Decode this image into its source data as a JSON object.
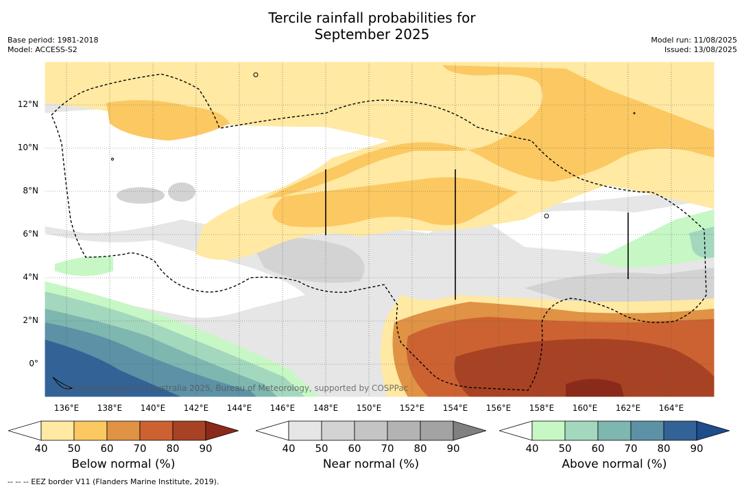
{
  "title_line1": "Tercile rainfall probabilities for",
  "title_line2": "September 2025",
  "meta_left": {
    "base_period": "Base period: 1981-2018",
    "model": "Model: ACCESS-S2"
  },
  "meta_right": {
    "model_run": "Model run: 11/08/2025",
    "issued": "Issued: 13/08/2025"
  },
  "map": {
    "lon_labels": [
      "136°E",
      "138°E",
      "140°E",
      "142°E",
      "144°E",
      "146°E",
      "148°E",
      "150°E",
      "152°E",
      "154°E",
      "156°E",
      "158°E",
      "160°E",
      "162°E",
      "164°E"
    ],
    "lat_labels": [
      "12°N",
      "10°N",
      "8°N",
      "6°N",
      "4°N",
      "2°N",
      "0°"
    ],
    "copyright": "© Commonwealth of Australia 2025, Bureau of Meteorology, supported by COSPPac"
  },
  "colorbars": [
    {
      "title": "Below normal (%)",
      "ticks": [
        "40",
        "50",
        "60",
        "70",
        "80",
        "90"
      ],
      "colors": [
        "#ffffff",
        "#ffe9a3",
        "#fcc862",
        "#e09245",
        "#cc6231",
        "#a84224",
        "#8a2a1a"
      ]
    },
    {
      "title": "Near normal (%)",
      "ticks": [
        "40",
        "50",
        "60",
        "70",
        "80",
        "90"
      ],
      "colors": [
        "#ffffff",
        "#e6e6e6",
        "#d3d3d3",
        "#c4c4c4",
        "#b3b3b3",
        "#a3a3a3",
        "#808080"
      ]
    },
    {
      "title": "Above normal (%)",
      "ticks": [
        "40",
        "50",
        "60",
        "70",
        "80",
        "90"
      ],
      "colors": [
        "#ffffff",
        "#c7f7c5",
        "#a3d8be",
        "#7eb6b0",
        "#5c91a6",
        "#336396",
        "#1e4d8c"
      ]
    }
  ],
  "footer_note": "--  --  -- EEZ border V11 (Flanders Marine Institute, 2019)."
}
